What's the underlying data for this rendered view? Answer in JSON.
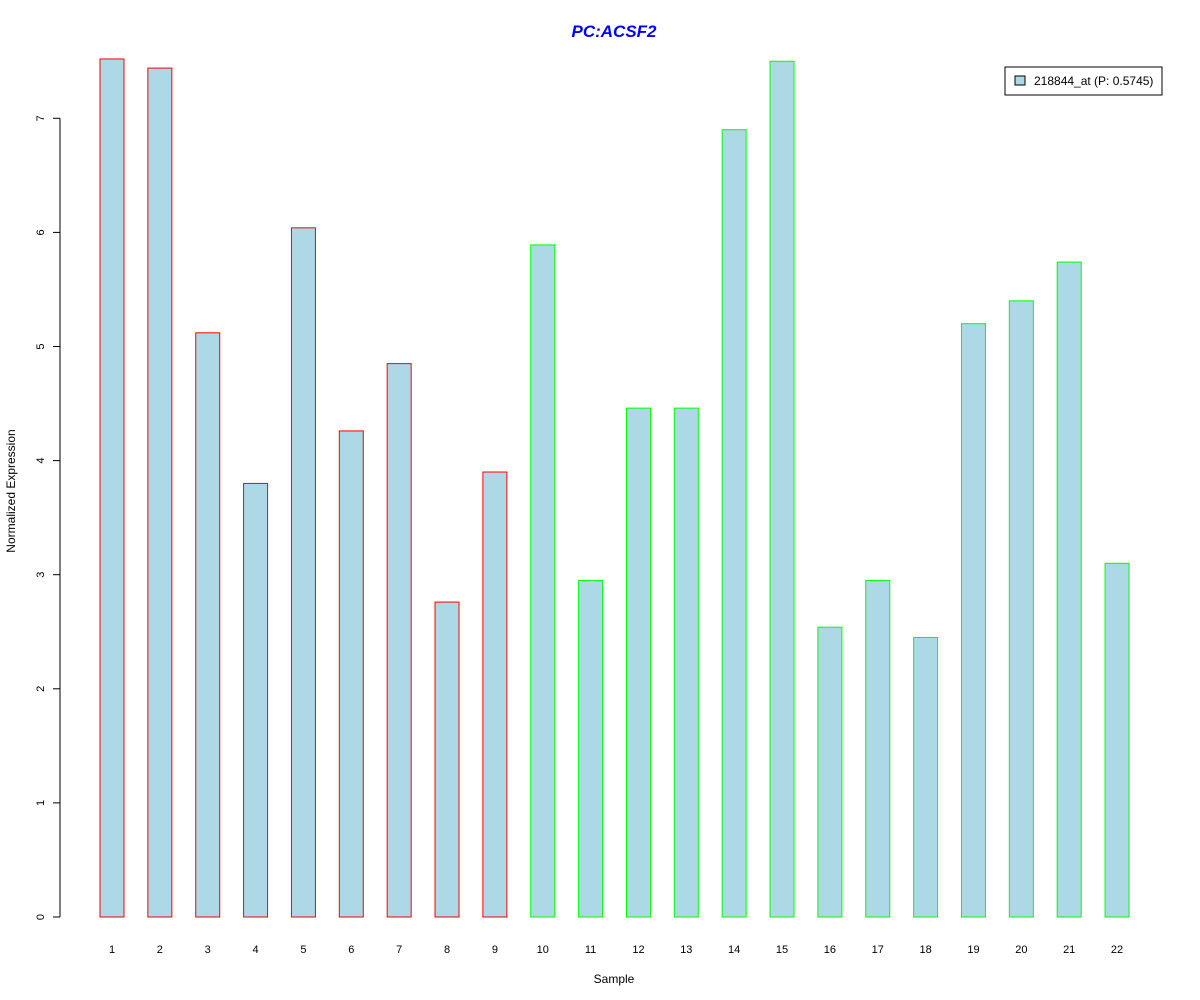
{
  "chart_data": {
    "type": "bar",
    "title": "PC:ACSF2",
    "xlabel": "Sample",
    "ylabel": "Normalized Expression",
    "categories": [
      "1",
      "2",
      "3",
      "4",
      "5",
      "6",
      "7",
      "8",
      "9",
      "10",
      "11",
      "12",
      "13",
      "14",
      "15",
      "16",
      "17",
      "18",
      "19",
      "20",
      "21",
      "22"
    ],
    "series": [
      {
        "name": "218844_at (P: 0.5745)",
        "values": [
          7.52,
          7.44,
          5.12,
          3.8,
          6.04,
          4.26,
          4.85,
          2.76,
          3.9,
          5.89,
          2.95,
          4.46,
          4.46,
          6.9,
          7.5,
          2.54,
          2.95,
          2.45,
          5.2,
          5.4,
          5.74,
          3.1
        ]
      }
    ],
    "group_of_sample": [
      1,
      1,
      1,
      1,
      1,
      1,
      1,
      1,
      1,
      2,
      2,
      2,
      2,
      2,
      2,
      2,
      2,
      2,
      2,
      2,
      2,
      2
    ],
    "yticks": [
      0,
      1,
      2,
      3,
      4,
      5,
      6,
      7
    ],
    "ylim": [
      0,
      7.52
    ],
    "grid": false,
    "legend_position": "top-right",
    "colors": {
      "bar_fill": "#add8e6",
      "group1_border": "#ff0000",
      "group2_border": "#00ff00",
      "title": "#0000ff",
      "axis": "#000000"
    }
  }
}
